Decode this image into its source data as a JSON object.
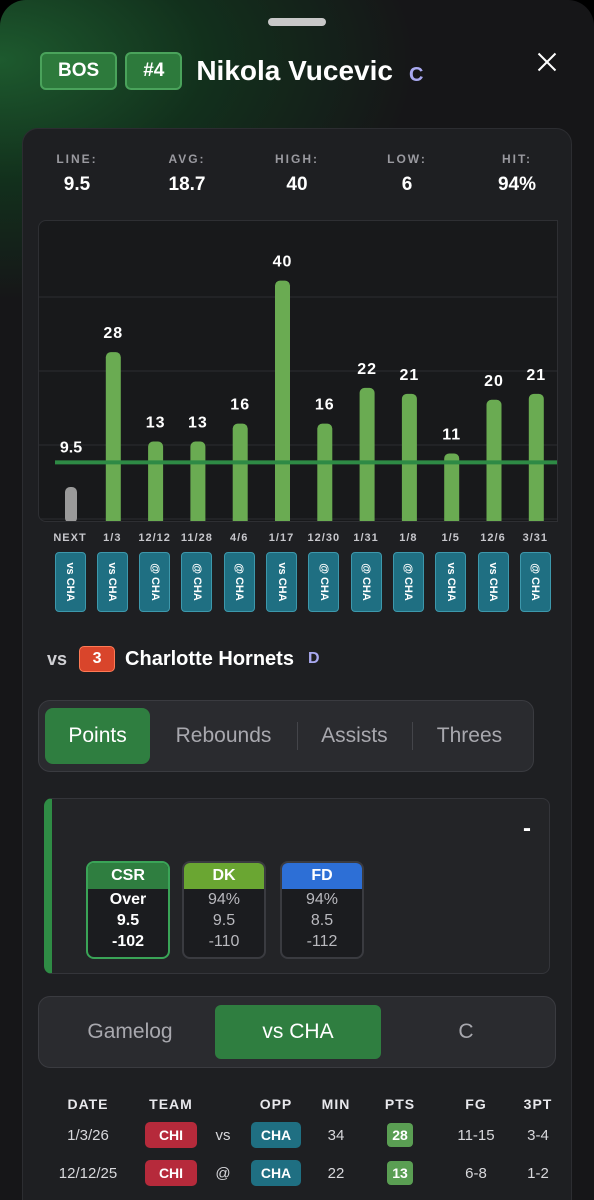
{
  "header": {
    "team": "BOS",
    "number": "#4",
    "player_name": "Nikola Vucevic",
    "position": "C"
  },
  "stats": [
    {
      "label": "LINE:",
      "value": "9.5"
    },
    {
      "label": "AVG:",
      "value": "18.7"
    },
    {
      "label": "HIGH:",
      "value": "40"
    },
    {
      "label": "LOW:",
      "value": "6"
    },
    {
      "label": "HIT:",
      "value": "94%"
    }
  ],
  "chart_data": {
    "type": "bar",
    "line_value": 9.5,
    "line_label": "9.5",
    "ylim": [
      0,
      50
    ],
    "categories": [
      "NEXT",
      "1/3",
      "12/12",
      "11/28",
      "4/6",
      "1/17",
      "12/30",
      "1/31",
      "1/8",
      "1/5",
      "12/6",
      "3/31"
    ],
    "opponents": [
      "vs CHA",
      "vs CHA",
      "@ CHA",
      "@ CHA",
      "@ CHA",
      "vs CHA",
      "@ CHA",
      "@ CHA",
      "@ CHA",
      "vs CHA",
      "vs CHA",
      "@ CHA"
    ],
    "values": [
      null,
      28,
      13,
      13,
      16,
      40,
      16,
      22,
      21,
      11,
      20,
      21
    ],
    "colors": {
      "bar": "#6aab52",
      "line": "#2e8a45",
      "next": "#9a9a9a"
    }
  },
  "matchup": {
    "vs": "vs",
    "rank": "3",
    "opponent": "Charlotte Hornets",
    "grade": "D"
  },
  "stat_tabs": [
    "Points",
    "Rebounds",
    "Assists",
    "Threes"
  ],
  "odds": {
    "dash": "-",
    "books": [
      {
        "name": "CSR",
        "l1": "Over",
        "l2": "9.5",
        "l3": "-102",
        "color": "#2f7e40"
      },
      {
        "name": "DK",
        "l1": "94%",
        "l2": "9.5",
        "l3": "-110",
        "color": "#6aa632"
      },
      {
        "name": "FD",
        "l1": "94%",
        "l2": "8.5",
        "l3": "-112",
        "color": "#2d6fd6"
      }
    ]
  },
  "view_tabs": [
    "Gamelog",
    "vs CHA",
    "C"
  ],
  "gamelog": {
    "headers": [
      "DATE",
      "TEAM",
      "OPP",
      "MIN",
      "PTS",
      "FG",
      "3PT"
    ],
    "rows": [
      {
        "date": "1/3/26",
        "team": "CHI",
        "loc": "vs",
        "opp": "CHA",
        "min": "34",
        "pts": "28",
        "fg": "11-15",
        "tpt": "3-4"
      },
      {
        "date": "12/12/25",
        "team": "CHI",
        "loc": "@",
        "opp": "CHA",
        "min": "22",
        "pts": "13",
        "fg": "6-8",
        "tpt": "1-2"
      }
    ]
  }
}
